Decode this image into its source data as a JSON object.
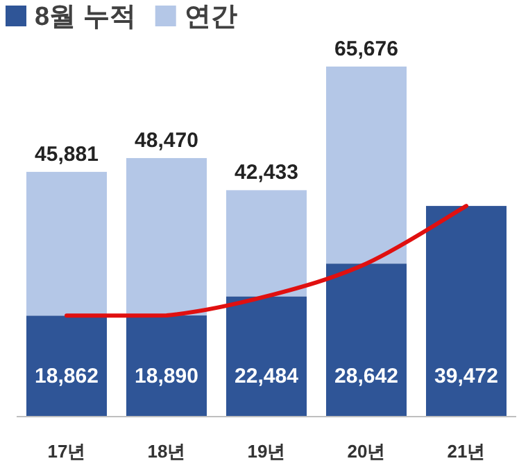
{
  "chart_data": {
    "type": "bar",
    "stacked": true,
    "categories": [
      "17년",
      "18년",
      "19년",
      "20년",
      "21년"
    ],
    "series": [
      {
        "name": "8월 누적",
        "color": "#2f5597",
        "values": [
          18862,
          18890,
          22484,
          28642,
          39472
        ],
        "value_labels": [
          "18,862",
          "18,890",
          "22,484",
          "28,642",
          "39,472"
        ]
      },
      {
        "name": "연간",
        "color": "#b4c7e7",
        "values": [
          27019,
          29580,
          19949,
          37034,
          null
        ]
      },
      {
        "type": "line",
        "color": "#e01010",
        "values": [
          18862,
          18890,
          22484,
          28642,
          39472
        ]
      }
    ],
    "totals": [
      "45,881",
      "48,470",
      "42,433",
      "65,676",
      null
    ],
    "legend": "top left",
    "grid": false,
    "marker": "none",
    "line_style": "solid"
  }
}
